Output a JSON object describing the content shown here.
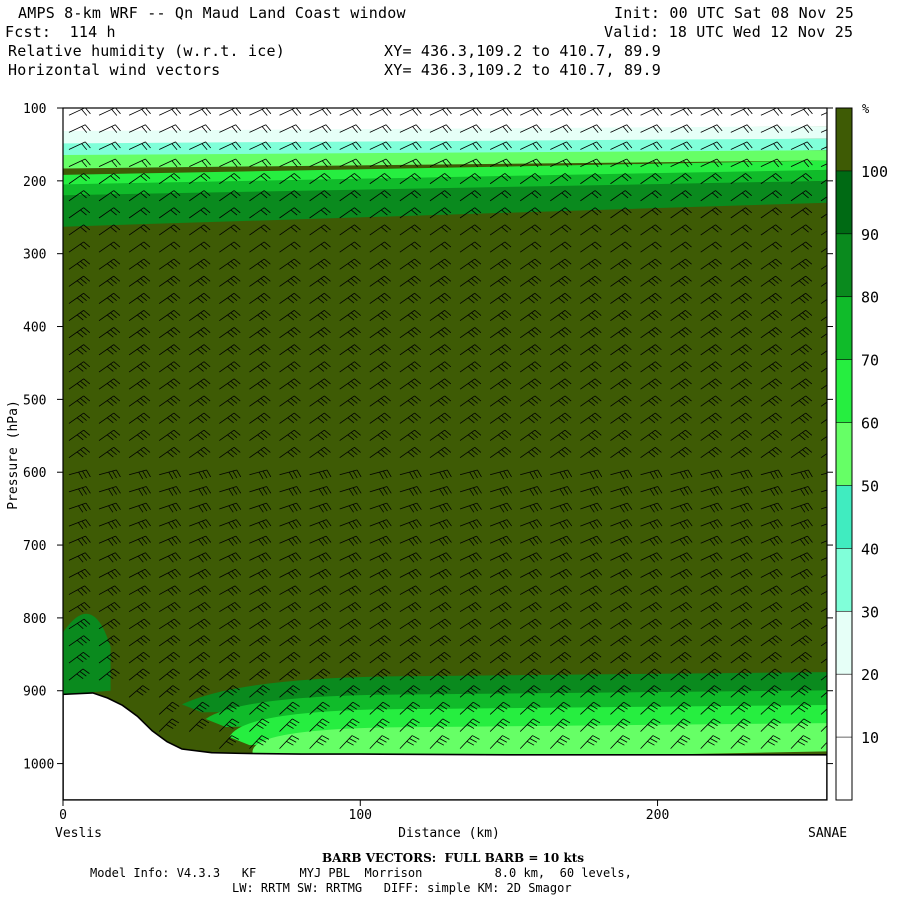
{
  "header": {
    "title": "AMPS 8-km WRF -- Qn Maud Land Coast window",
    "init": "Init: 00 UTC Sat 08 Nov 25",
    "fcst": "Fcst:  114 h",
    "valid": "Valid: 18 UTC Wed 12 Nov 25",
    "field1": "Relative humidity (w.r.t. ice)",
    "field2": "Horizontal wind vectors",
    "xy1": "XY= 436.3,109.2 to 410.7, 89.9",
    "xy2": "XY= 436.3,109.2 to 410.7, 89.9"
  },
  "chart_data": {
    "type": "heatmap",
    "title": "",
    "xlabel": "Distance (km)",
    "ylabel": "Pressure (hPa)",
    "xlim": [
      0,
      257
    ],
    "ylim": [
      1050,
      100
    ],
    "x_ticks": [
      0,
      100,
      200
    ],
    "y_ticks": [
      100,
      200,
      300,
      400,
      500,
      600,
      700,
      800,
      900,
      1000
    ],
    "x_end_labels": {
      "left": "Veslis",
      "right": "SANAE"
    },
    "colorbar": {
      "unit": "%",
      "levels": [
        10,
        20,
        30,
        40,
        50,
        60,
        70,
        80,
        90,
        100
      ],
      "colors": [
        "#ffffff",
        "#ffffff",
        "#ffffff",
        "#e6fff7",
        "#80ffd9",
        "#40ecc0",
        "#66ff66",
        "#26ee40",
        "#10bb2a",
        "#0a8a1e",
        "#006a14",
        "#3e5b05"
      ]
    },
    "terrain": {
      "distance_km": [
        0,
        10,
        15,
        20,
        25,
        30,
        35,
        40,
        50,
        60,
        80,
        100,
        150,
        200,
        257
      ],
      "pressure_hPa": [
        905,
        903,
        910,
        920,
        935,
        955,
        970,
        980,
        985,
        986,
        987,
        987,
        988,
        988,
        988
      ]
    },
    "rh_bands": [
      {
        "rh": "10-20",
        "p_top": 100,
        "p_bottom": 125
      },
      {
        "rh": "30-40",
        "p_top": 125,
        "p_bottom": 142
      },
      {
        "rh": "40-50",
        "p_top": 142,
        "p_bottom": 158
      },
      {
        "rh": "60-70",
        "p_top": 158,
        "p_bottom": 172
      },
      {
        "rh": "70-80",
        "p_top": 172,
        "p_bottom": 185
      },
      {
        "rh": "80-90",
        "p_top": 185,
        "p_bottom": 200
      },
      {
        "rh": "90-100",
        "p_top": 200,
        "p_bottom": 230
      },
      {
        "rh": ">100",
        "p_top": 230,
        "p_bottom": 895
      },
      {
        "rh": "90-100",
        "p_top": 880,
        "p_bottom": 905
      },
      {
        "rh": "80-90",
        "p_top": 905,
        "p_bottom": 925
      },
      {
        "rh": "70-80",
        "p_top": 925,
        "p_bottom": 950
      },
      {
        "rh": "60-70",
        "p_top": 950,
        "p_bottom": 975
      }
    ],
    "wind_barbs": {
      "full_barb_kts": 10
    }
  },
  "footer": {
    "barb_note": "BARB VECTORS:  FULL BARB = 10 kts",
    "model_info": "Model Info: V4.3.3   KF      MYJ PBL  Morrison          8.0 km,  60 levels,",
    "physics": "LW: RRTM SW: RRTMG   DIFF: simple KM: 2D Smagor"
  }
}
